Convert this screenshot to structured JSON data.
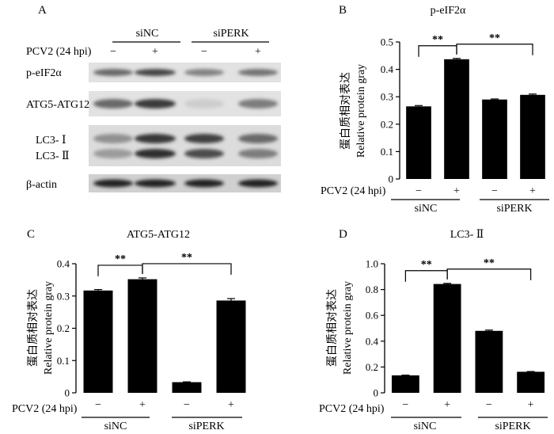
{
  "figure": {
    "panel_a": {
      "letter": "A",
      "group_labels": [
        "siNC",
        "siPERK"
      ],
      "treatment_label": "PCV2 (24 hpi)",
      "treatment_signs": [
        "−",
        "+",
        "−",
        "+"
      ],
      "bands": [
        {
          "name": "p-eIF2α",
          "intensity": [
            0.55,
            0.72,
            0.42,
            0.5
          ]
        },
        {
          "name": "ATG5-ATG12",
          "intensity": [
            0.55,
            0.78,
            0.05,
            0.45
          ]
        },
        {
          "name": "LC3- Ⅰ",
          "intensity": [
            0.35,
            0.8,
            0.75,
            0.55
          ]
        },
        {
          "name": "LC3- Ⅱ",
          "intensity": [
            0.3,
            0.85,
            0.7,
            0.45
          ]
        },
        {
          "name": "β-actin",
          "intensity": [
            0.9,
            0.9,
            0.9,
            0.9
          ]
        }
      ]
    }
  },
  "chart_data": [
    {
      "panel": "B",
      "type": "bar",
      "title": "p-eIF2α",
      "ylabel_cn": "蛋白质相对表达",
      "ylabel": "Relative protein gray",
      "xlabel": "PCV2 (24 hpi)",
      "categories": [
        "−",
        "+",
        "−",
        "+"
      ],
      "groups": [
        "siNC",
        "siPERK"
      ],
      "values": [
        0.265,
        0.437,
        0.29,
        0.307
      ],
      "errors": [
        0.003,
        0.003,
        0.002,
        0.003
      ],
      "ylim": [
        0,
        0.5
      ],
      "yticks": [
        "0",
        "0.1",
        "0.2",
        "0.3",
        "0.4",
        "0.5"
      ],
      "significance": [
        {
          "from": 0,
          "to": 1,
          "label": "**"
        },
        {
          "from": 1,
          "to": 3,
          "label": "**"
        }
      ]
    },
    {
      "panel": "C",
      "type": "bar",
      "title": "ATG5-ATG12",
      "ylabel_cn": "蛋白质相对表达",
      "ylabel": "Relative protein gray",
      "xlabel": "PCV2 (24 hpi)",
      "categories": [
        "−",
        "+",
        "−",
        "+"
      ],
      "groups": [
        "siNC",
        "siPERK"
      ],
      "values": [
        0.317,
        0.352,
        0.033,
        0.286
      ],
      "errors": [
        0.003,
        0.004,
        0.001,
        0.006
      ],
      "ylim": [
        0,
        0.4
      ],
      "yticks": [
        "0",
        "0.1",
        "0.2",
        "0.3",
        "0.4"
      ],
      "significance": [
        {
          "from": 0,
          "to": 1,
          "label": "**"
        },
        {
          "from": 1,
          "to": 3,
          "label": "**"
        }
      ]
    },
    {
      "panel": "D",
      "type": "bar",
      "title": "LC3- Ⅱ",
      "ylabel_cn": "蛋白质相对表达",
      "ylabel": "Relative protein gray",
      "xlabel": "PCV2 (24 hpi)",
      "categories": [
        "−",
        "+",
        "−",
        "+"
      ],
      "groups": [
        "siNC",
        "siPERK"
      ],
      "values": [
        0.135,
        0.843,
        0.48,
        0.163
      ],
      "errors": [
        0.002,
        0.005,
        0.006,
        0.002
      ],
      "ylim": [
        0,
        1.0
      ],
      "yticks": [
        "0",
        "0.2",
        "0.4",
        "0.6",
        "0.8",
        "1.0"
      ],
      "significance": [
        {
          "from": 0,
          "to": 1,
          "label": "**"
        },
        {
          "from": 1,
          "to": 3,
          "label": "**"
        }
      ]
    }
  ]
}
